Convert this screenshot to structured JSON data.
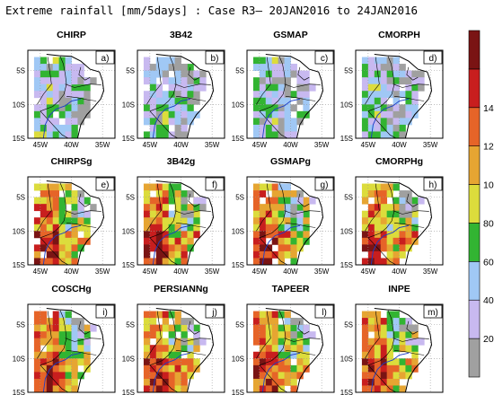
{
  "title": "Extreme rainfall [mm/5days] : Case R3–  20JAN2016 to 24JAN2016",
  "lat_ticks": [
    "5S",
    "10S",
    "15S"
  ],
  "lon_ticks": [
    "45W",
    "40W",
    "35W"
  ],
  "panels": [
    {
      "name": "CHIRP",
      "tag": "a)"
    },
    {
      "name": "3B42",
      "tag": "b)"
    },
    {
      "name": "GSMAP",
      "tag": "c)"
    },
    {
      "name": "CMORPH",
      "tag": "d)"
    },
    {
      "name": "CHIRPSg",
      "tag": "e)"
    },
    {
      "name": "3B42g",
      "tag": "f)"
    },
    {
      "name": "GSMAPg",
      "tag": "g)"
    },
    {
      "name": "CMORPHg",
      "tag": "h)"
    },
    {
      "name": "COSCHg",
      "tag": "i)"
    },
    {
      "name": "PERSIANNg",
      "tag": "j)"
    },
    {
      "name": "TAPEER",
      "tag": "l)"
    },
    {
      "name": "INPE",
      "tag": "m)"
    }
  ],
  "colorbar": {
    "labels": [
      "20",
      "40",
      "60",
      "80",
      "100",
      "120",
      "140"
    ],
    "colors": [
      "#a0a0a0",
      "#c8b9f0",
      "#a0c8f5",
      "#32b432",
      "#dcdc3c",
      "#e6a532",
      "#e66428",
      "#c81e1e",
      "#7a1414"
    ]
  }
}
